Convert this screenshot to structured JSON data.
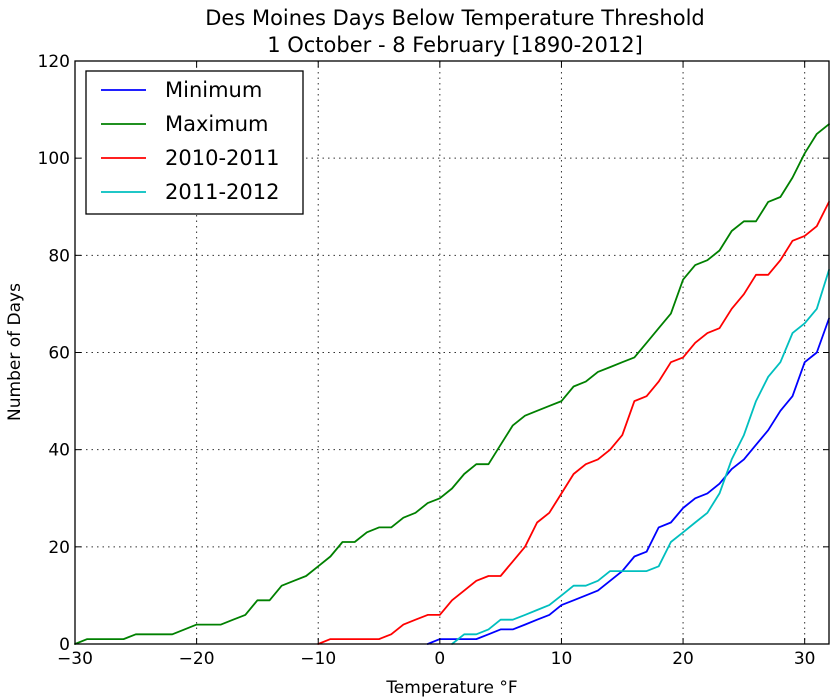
{
  "chart_data": {
    "type": "line",
    "title": "Des Moines Days Below Temperature Threshold",
    "subtitle": "1 October - 8 February [1890-2012]",
    "xlabel": "Temperature °F",
    "ylabel": "Number of Days",
    "xlim": [
      -30,
      32
    ],
    "ylim": [
      0,
      120
    ],
    "xticks": [
      -30,
      -20,
      -10,
      0,
      10,
      20,
      30
    ],
    "xtick_labels": [
      "−30",
      "−20",
      "−10",
      "0",
      "10",
      "20",
      "30"
    ],
    "yticks": [
      0,
      20,
      40,
      60,
      80,
      100,
      120
    ],
    "ytick_labels": [
      "0",
      "20",
      "40",
      "60",
      "80",
      "100",
      "120"
    ],
    "grid": true,
    "legend_position": "top-left",
    "series": [
      {
        "name": "Minimum",
        "color": "#0000ff",
        "points": [
          [
            -1,
            0
          ],
          [
            0,
            1
          ],
          [
            1,
            1
          ],
          [
            2,
            1
          ],
          [
            3,
            1
          ],
          [
            4,
            2
          ],
          [
            5,
            3
          ],
          [
            6,
            3
          ],
          [
            7,
            4
          ],
          [
            8,
            5
          ],
          [
            9,
            6
          ],
          [
            10,
            8
          ],
          [
            11,
            9
          ],
          [
            12,
            10
          ],
          [
            13,
            11
          ],
          [
            14,
            13
          ],
          [
            15,
            15
          ],
          [
            16,
            18
          ],
          [
            17,
            19
          ],
          [
            18,
            24
          ],
          [
            19,
            25
          ],
          [
            20,
            28
          ],
          [
            21,
            30
          ],
          [
            22,
            31
          ],
          [
            23,
            33
          ],
          [
            24,
            36
          ],
          [
            25,
            38
          ],
          [
            26,
            41
          ],
          [
            27,
            44
          ],
          [
            28,
            48
          ],
          [
            29,
            51
          ],
          [
            30,
            58
          ],
          [
            31,
            60
          ],
          [
            32,
            67
          ]
        ]
      },
      {
        "name": "Maximum",
        "color": "#008000",
        "points": [
          [
            -30,
            0
          ],
          [
            -29,
            1
          ],
          [
            -28,
            1
          ],
          [
            -27,
            1
          ],
          [
            -26,
            1
          ],
          [
            -25,
            2
          ],
          [
            -24,
            2
          ],
          [
            -23,
            2
          ],
          [
            -22,
            2
          ],
          [
            -21,
            3
          ],
          [
            -20,
            4
          ],
          [
            -19,
            4
          ],
          [
            -18,
            4
          ],
          [
            -17,
            5
          ],
          [
            -16,
            6
          ],
          [
            -15,
            9
          ],
          [
            -14,
            9
          ],
          [
            -13,
            12
          ],
          [
            -12,
            13
          ],
          [
            -11,
            14
          ],
          [
            -10,
            16
          ],
          [
            -9,
            18
          ],
          [
            -8,
            21
          ],
          [
            -7,
            21
          ],
          [
            -6,
            23
          ],
          [
            -5,
            24
          ],
          [
            -4,
            24
          ],
          [
            -3,
            26
          ],
          [
            -2,
            27
          ],
          [
            -1,
            29
          ],
          [
            0,
            30
          ],
          [
            1,
            32
          ],
          [
            2,
            35
          ],
          [
            3,
            37
          ],
          [
            4,
            37
          ],
          [
            5,
            41
          ],
          [
            6,
            45
          ],
          [
            7,
            47
          ],
          [
            8,
            48
          ],
          [
            9,
            49
          ],
          [
            10,
            50
          ],
          [
            11,
            53
          ],
          [
            12,
            54
          ],
          [
            13,
            56
          ],
          [
            14,
            57
          ],
          [
            15,
            58
          ],
          [
            16,
            59
          ],
          [
            17,
            62
          ],
          [
            18,
            65
          ],
          [
            19,
            68
          ],
          [
            20,
            75
          ],
          [
            21,
            78
          ],
          [
            22,
            79
          ],
          [
            23,
            81
          ],
          [
            24,
            85
          ],
          [
            25,
            87
          ],
          [
            26,
            87
          ],
          [
            27,
            91
          ],
          [
            28,
            92
          ],
          [
            29,
            96
          ],
          [
            30,
            101
          ],
          [
            31,
            105
          ],
          [
            32,
            107
          ]
        ]
      },
      {
        "name": "2010-2011",
        "color": "#ff0000",
        "points": [
          [
            -10,
            0
          ],
          [
            -9,
            1
          ],
          [
            -8,
            1
          ],
          [
            -7,
            1
          ],
          [
            -6,
            1
          ],
          [
            -5,
            1
          ],
          [
            -4,
            2
          ],
          [
            -3,
            4
          ],
          [
            -2,
            5
          ],
          [
            -1,
            6
          ],
          [
            0,
            6
          ],
          [
            1,
            9
          ],
          [
            2,
            11
          ],
          [
            3,
            13
          ],
          [
            4,
            14
          ],
          [
            5,
            14
          ],
          [
            6,
            17
          ],
          [
            7,
            20
          ],
          [
            8,
            25
          ],
          [
            9,
            27
          ],
          [
            10,
            31
          ],
          [
            11,
            35
          ],
          [
            12,
            37
          ],
          [
            13,
            38
          ],
          [
            14,
            40
          ],
          [
            15,
            43
          ],
          [
            16,
            50
          ],
          [
            17,
            51
          ],
          [
            18,
            54
          ],
          [
            19,
            58
          ],
          [
            20,
            59
          ],
          [
            21,
            62
          ],
          [
            22,
            64
          ],
          [
            23,
            65
          ],
          [
            24,
            69
          ],
          [
            25,
            72
          ],
          [
            26,
            76
          ],
          [
            27,
            76
          ],
          [
            28,
            79
          ],
          [
            29,
            83
          ],
          [
            30,
            84
          ],
          [
            31,
            86
          ],
          [
            32,
            91
          ]
        ]
      },
      {
        "name": "2011-2012",
        "color": "#00bfbf",
        "points": [
          [
            1,
            0
          ],
          [
            2,
            2
          ],
          [
            3,
            2
          ],
          [
            4,
            3
          ],
          [
            5,
            5
          ],
          [
            6,
            5
          ],
          [
            7,
            6
          ],
          [
            8,
            7
          ],
          [
            9,
            8
          ],
          [
            10,
            10
          ],
          [
            11,
            12
          ],
          [
            12,
            12
          ],
          [
            13,
            13
          ],
          [
            14,
            15
          ],
          [
            15,
            15
          ],
          [
            16,
            15
          ],
          [
            17,
            15
          ],
          [
            18,
            16
          ],
          [
            19,
            21
          ],
          [
            20,
            23
          ],
          [
            21,
            25
          ],
          [
            22,
            27
          ],
          [
            23,
            31
          ],
          [
            24,
            38
          ],
          [
            25,
            43
          ],
          [
            26,
            50
          ],
          [
            27,
            55
          ],
          [
            28,
            58
          ],
          [
            29,
            64
          ],
          [
            30,
            66
          ],
          [
            31,
            69
          ],
          [
            32,
            77
          ]
        ]
      }
    ]
  }
}
